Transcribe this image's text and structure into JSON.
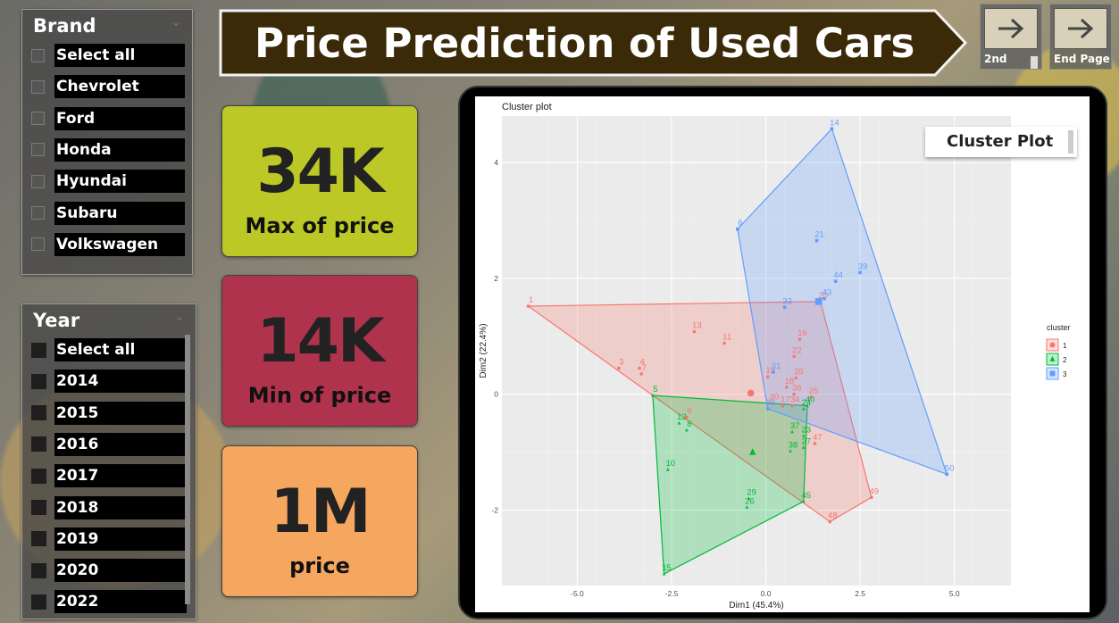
{
  "header": {
    "title": "Price Prediction of Used Cars"
  },
  "nav": {
    "second": {
      "label": "2nd"
    },
    "end": {
      "label": "End Page"
    }
  },
  "brand_slicer": {
    "title": "Brand",
    "items": [
      "Select all",
      "Chevrolet",
      "Ford",
      "Honda",
      "Hyundai",
      "Subaru",
      "Volkswagen"
    ]
  },
  "year_slicer": {
    "title": "Year",
    "items": [
      "Select all",
      "2014",
      "2015",
      "2016",
      "2017",
      "2018",
      "2019",
      "2020",
      "2022"
    ]
  },
  "cards": [
    {
      "value": "34K",
      "caption": "Max of price",
      "color": "#bcc825"
    },
    {
      "value": "14K",
      "caption": "Min of price",
      "color": "#b0334e"
    },
    {
      "value": "1M",
      "caption": "price",
      "color": "#f5a65f"
    }
  ],
  "cluster_badge": {
    "label": "Cluster Plot"
  },
  "chart_data": {
    "type": "scatter",
    "title": "Cluster plot",
    "xlabel": "Dim1 (45.4%)",
    "ylabel": "Dim2 (22.4%)",
    "xlim": [
      -7,
      6.5
    ],
    "ylim": [
      -3.3,
      4.8
    ],
    "xticks": [
      -5.0,
      -2.5,
      0.0,
      2.5,
      5.0
    ],
    "xtick_labels": [
      "-5.0",
      "-2.5",
      "0.0",
      "2.5",
      "5.0"
    ],
    "yticks": [
      -2,
      0,
      2,
      4
    ],
    "ytick_labels": [
      "-2",
      "0",
      "2",
      "4"
    ],
    "grid": true,
    "legend": {
      "title": "cluster",
      "position": "right"
    },
    "series": [
      {
        "name": "1",
        "color": "#f8766d",
        "marker": "circle",
        "points": [
          {
            "id": "1",
            "x": -6.3,
            "y": 1.52
          },
          {
            "id": "3",
            "x": -3.9,
            "y": 0.45
          },
          {
            "id": "4",
            "x": -3.35,
            "y": 0.45
          },
          {
            "id": "7",
            "x": -3.3,
            "y": 0.35
          },
          {
            "id": "9",
            "x": -2.1,
            "y": -0.4
          },
          {
            "id": "11",
            "x": -1.1,
            "y": 0.88
          },
          {
            "id": "13",
            "x": -1.9,
            "y": 1.08
          },
          {
            "id": "16",
            "x": 0.9,
            "y": 0.95
          },
          {
            "id": "22",
            "x": 0.75,
            "y": 0.65
          },
          {
            "id": "35",
            "x": 0.8,
            "y": 0.28
          },
          {
            "id": "18",
            "x": 0.55,
            "y": 0.12
          },
          {
            "id": "36",
            "x": 0.75,
            "y": 0.0
          },
          {
            "id": "25",
            "x": 1.2,
            "y": -0.05
          },
          {
            "id": "19",
            "x": 0.05,
            "y": 0.3
          },
          {
            "id": "34",
            "x": 0.7,
            "y": -0.2
          },
          {
            "id": "17",
            "x": 0.45,
            "y": -0.2
          },
          {
            "id": "30",
            "x": 0.15,
            "y": -0.15
          },
          {
            "id": "47",
            "x": 1.3,
            "y": -0.85
          },
          {
            "id": "49",
            "x": 2.8,
            "y": -1.78
          },
          {
            "id": "48",
            "x": 1.7,
            "y": -2.2
          },
          {
            "id": "20",
            "x": 1.45,
            "y": 1.6
          }
        ],
        "centroid": {
          "x": -0.4,
          "y": 0.02
        },
        "hull": [
          [
            -6.3,
            1.52
          ],
          [
            1.45,
            1.6
          ],
          [
            2.8,
            -1.78
          ],
          [
            1.7,
            -2.2
          ],
          [
            -3.0,
            -0.02
          ]
        ]
      },
      {
        "name": "2",
        "color": "#00ba38",
        "marker": "triangle",
        "points": [
          {
            "id": "5",
            "x": -3.0,
            "y": -0.02
          },
          {
            "id": "12",
            "x": -2.3,
            "y": -0.5
          },
          {
            "id": "8",
            "x": -2.1,
            "y": -0.62
          },
          {
            "id": "10",
            "x": -2.6,
            "y": -1.3
          },
          {
            "id": "15",
            "x": -2.7,
            "y": -3.1
          },
          {
            "id": "29",
            "x": -0.45,
            "y": -1.8
          },
          {
            "id": "26",
            "x": -0.5,
            "y": -1.95
          },
          {
            "id": "45",
            "x": 1.0,
            "y": -1.85
          },
          {
            "id": "37",
            "x": 0.7,
            "y": -0.65
          },
          {
            "id": "38",
            "x": 0.65,
            "y": -0.98
          },
          {
            "id": "23",
            "x": 1.0,
            "y": -0.72
          },
          {
            "id": "27",
            "x": 1.0,
            "y": -0.92
          },
          {
            "id": "40",
            "x": 1.1,
            "y": -0.2
          },
          {
            "id": "24",
            "x": 1.0,
            "y": -0.25
          }
        ],
        "centroid": {
          "x": -0.35,
          "y": -1.0
        },
        "hull": [
          [
            -3.0,
            -0.02
          ],
          [
            1.1,
            -0.2
          ],
          [
            1.0,
            -1.85
          ],
          [
            -2.7,
            -3.1
          ]
        ]
      },
      {
        "name": "3",
        "color": "#619cff",
        "marker": "square",
        "points": [
          {
            "id": "14",
            "x": 1.75,
            "y": 4.58
          },
          {
            "id": "6",
            "x": -0.75,
            "y": 2.85
          },
          {
            "id": "21",
            "x": 1.35,
            "y": 2.65
          },
          {
            "id": "44",
            "x": 1.85,
            "y": 1.95
          },
          {
            "id": "39",
            "x": 2.5,
            "y": 2.1
          },
          {
            "id": "33",
            "x": 0.5,
            "y": 1.5
          },
          {
            "id": "43",
            "x": 1.55,
            "y": 1.65
          },
          {
            "id": "31",
            "x": 0.2,
            "y": 0.38
          },
          {
            "id": "32",
            "x": 0.05,
            "y": -0.25
          },
          {
            "id": "50",
            "x": 4.8,
            "y": -1.38
          }
        ],
        "centroid": {
          "x": 1.4,
          "y": 1.6
        },
        "hull": [
          [
            1.75,
            4.58
          ],
          [
            4.8,
            -1.38
          ],
          [
            0.05,
            -0.25
          ],
          [
            -0.75,
            2.85
          ]
        ]
      }
    ]
  }
}
